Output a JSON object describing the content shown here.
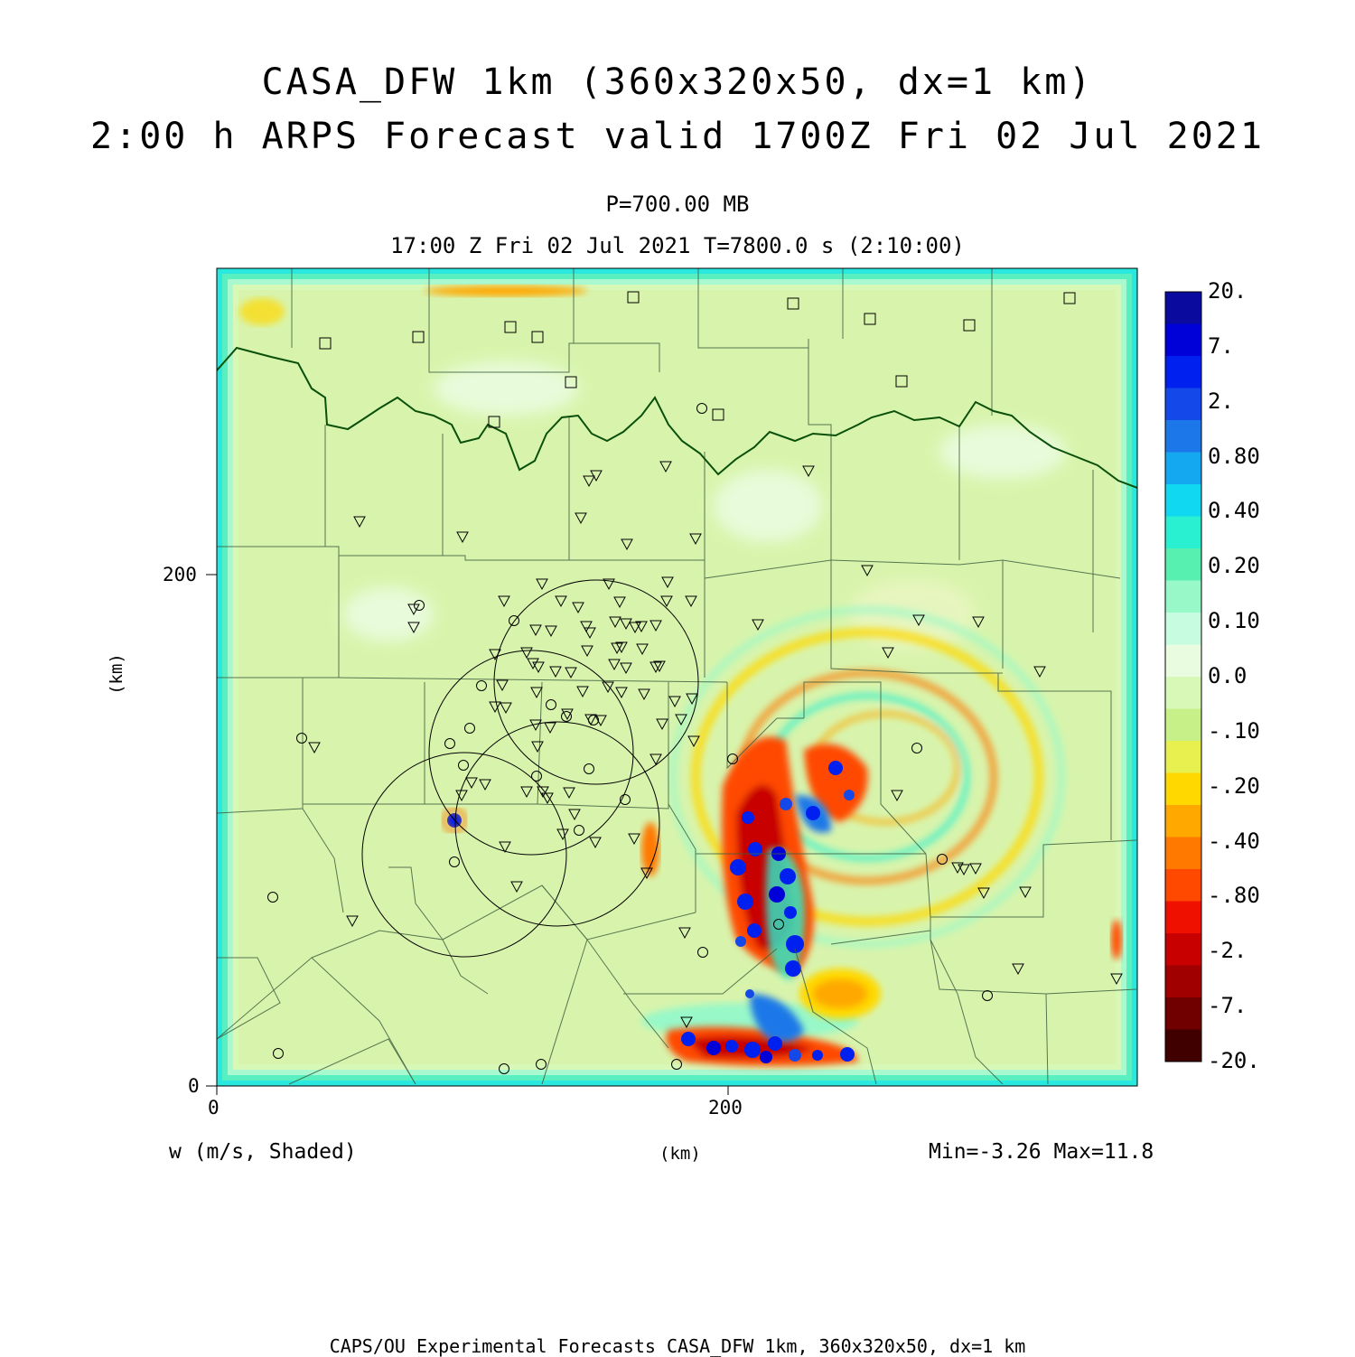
{
  "title": {
    "line1": "CASA_DFW 1km (360x320x50, dx=1 km)",
    "line2": "2:00 h ARPS Forecast valid 1700Z Fri 02 Jul 2021"
  },
  "level": "P=700.00 MB",
  "time_info": "17:00 Z Fri 02 Jul 2021   T=7800.0 s (2:10:00)",
  "axes": {
    "x_ticks": [
      "0",
      "200"
    ],
    "y_ticks": [
      "200",
      "0"
    ],
    "x_unit": "(km)",
    "y_unit": "(km)",
    "x_range_km": [
      0,
      360
    ],
    "y_range_km": [
      0,
      320
    ]
  },
  "variable_label": "w (m/s, Shaded)",
  "minmax": "Min=-3.26 Max=11.8",
  "colorbar": {
    "labels": [
      "20.",
      "7.",
      "2.",
      "0.80",
      "0.40",
      "0.20",
      "0.10",
      "0.0",
      "-.10",
      "-.20",
      "-.40",
      "-.80",
      "-2.",
      "-7.",
      "-20."
    ],
    "colors": [
      "#0a0a9e",
      "#0000d8",
      "#0020f0",
      "#1448e8",
      "#1c78e8",
      "#14a8f0",
      "#10d8f0",
      "#28f0d0",
      "#58f0b0",
      "#98f8c8",
      "#c8fce0",
      "#eafce0",
      "#d8f8b8",
      "#c8f088",
      "#e8f050",
      "#ffd800",
      "#ffa800",
      "#ff7800",
      "#ff4800",
      "#f01000",
      "#c80000",
      "#a00000",
      "#700000",
      "#400000"
    ]
  },
  "footer": "CAPS/OU Experimental Forecasts  CASA_DFW 1km, 360x320x50, dx=1 km"
}
